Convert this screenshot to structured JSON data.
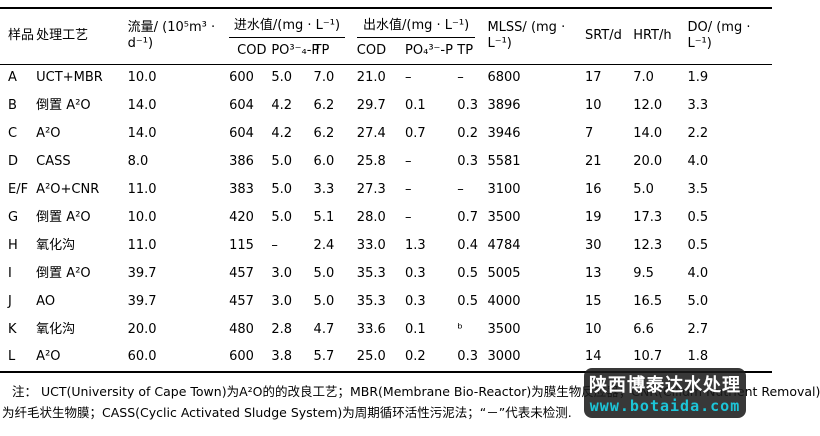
{
  "table": {
    "header": {
      "sample": "样品",
      "process": "处理工艺",
      "flow": "流量/ (10⁵m³ · d⁻¹)",
      "influent_group": "进水值/(mg · L⁻¹)",
      "effluent_group": "出水值/(mg · L⁻¹)",
      "in_cod": "COD",
      "in_po4": "PO³⁻₄-P",
      "in_tp": "TP",
      "out_cod": "COD",
      "out_po4": "PO₄³⁻-P",
      "out_tp": "TP",
      "mlss": "MLSS/ (mg · L⁻¹)",
      "srt": "SRT/d",
      "hrt": "HRT/h",
      "do": "DO/ (mg · L⁻¹)"
    },
    "rows": [
      [
        "A",
        "UCT+MBR",
        "10.0",
        "600",
        "5.0",
        "7.0",
        "21.0",
        "–",
        "–",
        "6800",
        "17",
        "7.0",
        "1.9"
      ],
      [
        "B",
        "倒置 A²O",
        "14.0",
        "604",
        "4.2",
        "6.2",
        "29.7",
        "0.1",
        "0.3",
        "3896",
        "10",
        "12.0",
        "3.3"
      ],
      [
        "C",
        "A²O",
        "14.0",
        "604",
        "4.2",
        "6.2",
        "27.4",
        "0.7",
        "0.2",
        "3946",
        "7",
        "14.0",
        "2.2"
      ],
      [
        "D",
        "CASS",
        "8.0",
        "386",
        "5.0",
        "6.0",
        "25.8",
        "–",
        "0.3",
        "5581",
        "21",
        "20.0",
        "4.0"
      ],
      [
        "E/F",
        "A²O+CNR",
        "11.0",
        "383",
        "5.0",
        "3.3",
        "27.3",
        "–",
        "–",
        "3100",
        "16",
        "5.0",
        "3.5"
      ],
      [
        "G",
        "倒置 A²O",
        "10.0",
        "420",
        "5.0",
        "5.1",
        "28.0",
        "–",
        "0.7",
        "3500",
        "19",
        "17.3",
        "0.5"
      ],
      [
        "H",
        "氧化沟",
        "11.0",
        "115",
        "–",
        "2.4",
        "33.0",
        "1.3",
        "0.4",
        "4784",
        "30",
        "12.3",
        "0.5"
      ],
      [
        "I",
        "倒置 A²O",
        "39.7",
        "457",
        "3.0",
        "5.0",
        "35.3",
        "0.3",
        "0.5",
        "5005",
        "13",
        "9.5",
        "4.0"
      ],
      [
        "J",
        "AO",
        "39.7",
        "457",
        "3.0",
        "5.0",
        "35.3",
        "0.3",
        "0.5",
        "4000",
        "15",
        "16.5",
        "5.0"
      ],
      [
        "K",
        "氧化沟",
        "20.0",
        "480",
        "2.8",
        "4.7",
        "33.6",
        "0.1",
        "ᵇ",
        "3500",
        "10",
        "6.6",
        "2.7"
      ],
      [
        "L",
        "A²O",
        "60.0",
        "600",
        "3.8",
        "5.7",
        "25.0",
        "0.2",
        "0.3",
        "3000",
        "14",
        "10.7",
        "1.8"
      ]
    ]
  },
  "footnote": {
    "line1": "注： UCT(University of Cape Town)为A²O的的改良工艺；MBR(Membrane Bio-Reactor)为膜生物反应器；CNR(Cilium Nutrient Removal)",
    "line2": "为纤毛状生物膜；CASS(Cyclic Activated Sludge System)为周期循环活性污泥法；“－”代表未检测."
  },
  "watermark": {
    "line1": "陕西博泰达水处理",
    "line2": "www.botaida.com",
    "bg_color": "#1a1a1a",
    "url_color": "#1cc5d8"
  }
}
